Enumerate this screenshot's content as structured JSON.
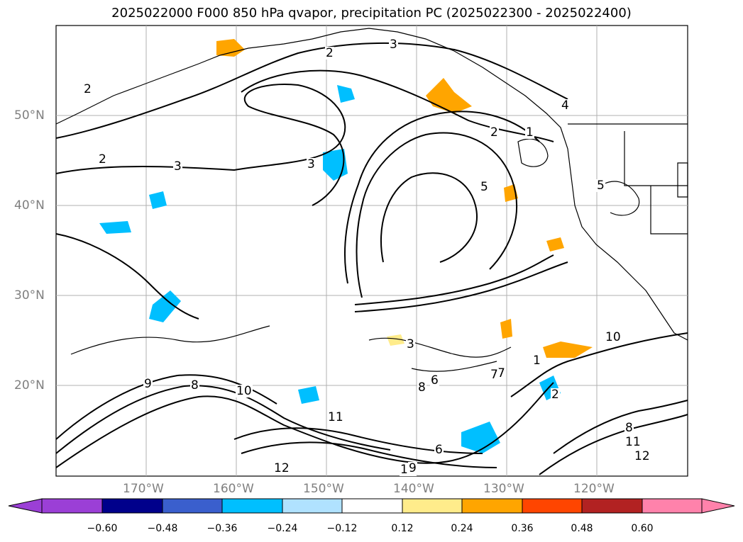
{
  "title": "2025022000 F000 850 hPa qvapor, precipitation PC (2025022300 - 2025022400)",
  "map": {
    "lat_labels": [
      "50°N",
      "40°N",
      "30°N",
      "20°N"
    ],
    "lon_labels": [
      "170°W",
      "160°W",
      "150°W",
      "140°W",
      "130°W",
      "120°W"
    ],
    "contour_labels": [
      "3",
      "2",
      "2",
      "2",
      "3",
      "1",
      "2",
      "3",
      "4",
      "5",
      "6",
      "7",
      "8",
      "9",
      "10",
      "11",
      "12",
      "10",
      "9",
      "8",
      "11",
      "12",
      "10",
      "5",
      "6",
      "2",
      "1",
      "3",
      "7",
      "8"
    ]
  },
  "colorbar": {
    "colors": [
      "#9b3fd6",
      "#00008b",
      "#3a5fcd",
      "#00bfff",
      "#b0e2ff",
      "#ffffff",
      "#ffec8b",
      "#ffa500",
      "#ff4500",
      "#b22222",
      "#ff82ab"
    ],
    "ticks": [
      "−0.60",
      "−0.48",
      "−0.36",
      "−0.24",
      "−0.12",
      "0.12",
      "0.24",
      "0.36",
      "0.48",
      "0.60"
    ]
  }
}
